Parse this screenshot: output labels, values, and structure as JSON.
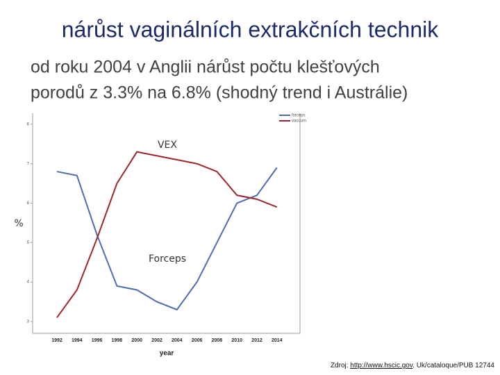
{
  "slide": {
    "title": "nárůst vaginálních extrakčních technik",
    "subtitle_lines": [
      "od roku 2004 v Anglii nárůst počtu klešťových",
      "porodů z 3.3% na 6.8% (shodný trend i Austrálie)"
    ],
    "source": {
      "prefix": "Zdroj: ",
      "link": "http://www.hscic.gov",
      "rest": ". Uk/cataloque/PUB 12744"
    }
  },
  "chart_data": {
    "type": "line",
    "x_label": "year",
    "y_label": "%",
    "annotations": [
      "VEX",
      "Forceps"
    ],
    "categories": [
      "1992",
      "1994",
      "1996",
      "1998",
      "2000",
      "2002",
      "2004",
      "2006",
      "2008",
      "2010",
      "2012",
      "2014"
    ],
    "series": [
      {
        "name": "forceps",
        "color": "#4a6cb0",
        "values": [
          6.8,
          6.7,
          5.2,
          3.9,
          3.8,
          3.5,
          3.3,
          4.0,
          5.0,
          6.0,
          6.2,
          6.9
        ]
      },
      {
        "name": "vacuum",
        "color": "#a0242c",
        "values": [
          3.1,
          3.8,
          5.1,
          6.5,
          7.3,
          7.2,
          7.1,
          7.0,
          6.8,
          6.2,
          6.1,
          5.9
        ]
      }
    ],
    "ylim": [
      2.7,
      8.28
    ],
    "yticks": [
      3,
      4,
      5,
      6,
      7,
      8
    ],
    "grid": false,
    "legend": "top-right"
  }
}
